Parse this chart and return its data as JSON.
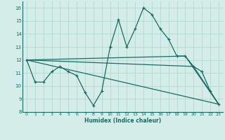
{
  "xlabel": "Humidex (Indice chaleur)",
  "ylabel": "",
  "xlim": [
    -0.5,
    23.5
  ],
  "ylim": [
    8,
    16.5
  ],
  "yticks": [
    8,
    9,
    10,
    11,
    12,
    13,
    14,
    15,
    16
  ],
  "xticks": [
    0,
    1,
    2,
    3,
    4,
    5,
    6,
    7,
    8,
    9,
    10,
    11,
    12,
    13,
    14,
    15,
    16,
    17,
    18,
    19,
    20,
    21,
    22,
    23
  ],
  "bg_color": "#d4ede9",
  "grid_color": "#aed4cf",
  "line_color": "#1a6b63",
  "line_width": 0.9,
  "marker": "+",
  "marker_size": 3,
  "series": [
    {
      "x": [
        0,
        1,
        2,
        3,
        4,
        5,
        6,
        7,
        8,
        9,
        10,
        11,
        12,
        13,
        14,
        15,
        16,
        17,
        18,
        19,
        20,
        21,
        22,
        23
      ],
      "y": [
        12.0,
        10.3,
        10.3,
        11.1,
        11.5,
        11.1,
        10.8,
        9.5,
        8.5,
        9.6,
        13.0,
        15.1,
        13.0,
        14.4,
        16.0,
        15.5,
        14.4,
        13.6,
        12.3,
        12.3,
        11.5,
        11.1,
        9.6,
        8.6
      ],
      "markers": true
    },
    {
      "x": [
        0,
        23
      ],
      "y": [
        12.0,
        8.6
      ],
      "markers": false
    },
    {
      "x": [
        0,
        19,
        23
      ],
      "y": [
        12.0,
        12.3,
        8.6
      ],
      "markers": false
    },
    {
      "x": [
        0,
        20,
        23
      ],
      "y": [
        12.0,
        11.5,
        8.6
      ],
      "markers": false
    }
  ]
}
